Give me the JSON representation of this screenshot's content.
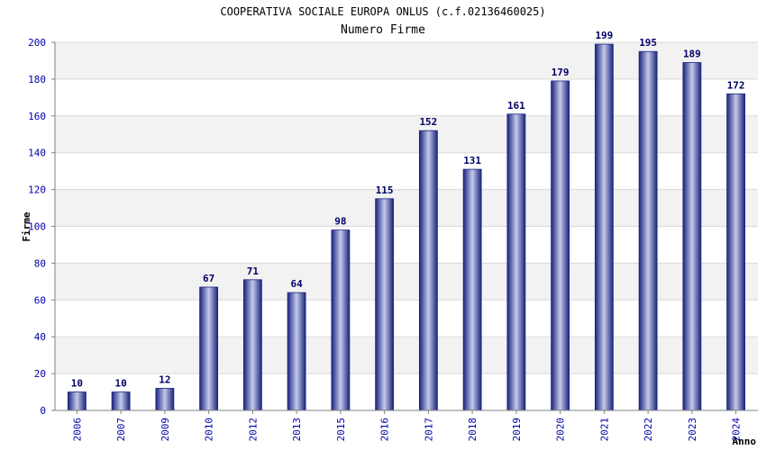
{
  "chart_data": {
    "type": "bar",
    "title": "COOPERATIVA SOCIALE EUROPA ONLUS (c.f.02136460025)",
    "subtitle": "Numero Firme",
    "xlabel": "Anno",
    "ylabel": "Firme",
    "categories": [
      "2006",
      "2007",
      "2009",
      "2010",
      "2012",
      "2013",
      "2015",
      "2016",
      "2017",
      "2018",
      "2019",
      "2020",
      "2021",
      "2022",
      "2023",
      "2024"
    ],
    "values": [
      10,
      10,
      12,
      67,
      71,
      64,
      98,
      115,
      152,
      131,
      161,
      179,
      199,
      195,
      189,
      172
    ],
    "ylim": [
      0,
      200
    ],
    "yticks": [
      0,
      20,
      40,
      60,
      80,
      100,
      120,
      140,
      160,
      180,
      200
    ],
    "grid": true,
    "colors": {
      "bar_dark": "#1a237e",
      "bar_light": "#c5cae9",
      "tick_text": "#0000aa",
      "data_label": "#000066",
      "band": "#f2f2f2",
      "grid": "#d9d9d9",
      "axis": "#808080"
    }
  }
}
